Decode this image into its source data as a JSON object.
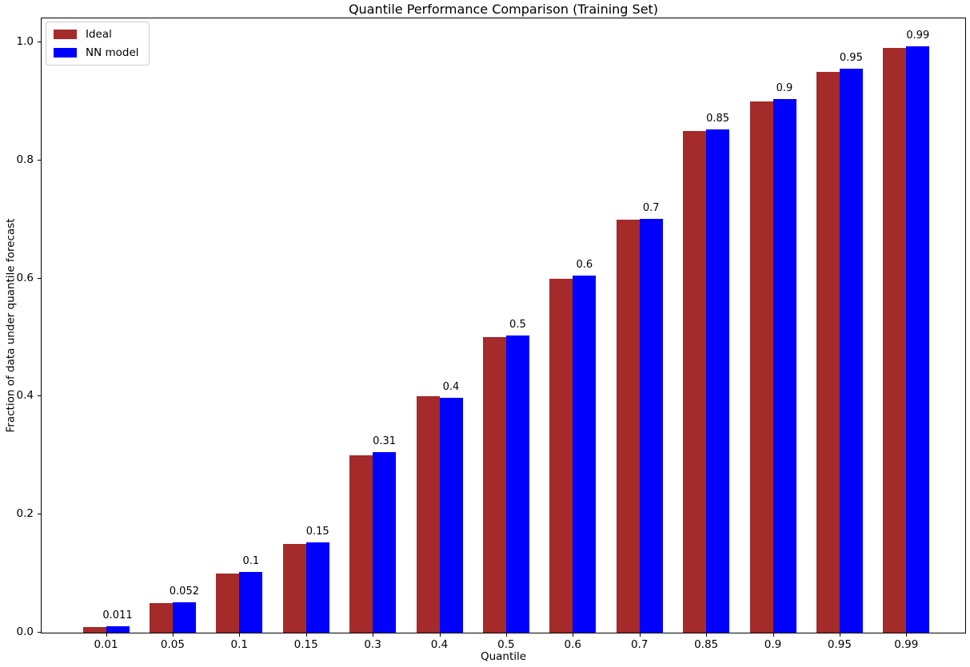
{
  "chart_data": {
    "type": "bar",
    "title": "Quantile Performance Comparison (Training Set)",
    "xlabel": "Quantile",
    "ylabel": "Fraction of data under quantile forecast",
    "categories": [
      "0.01",
      "0.05",
      "0.1",
      "0.15",
      "0.3",
      "0.4",
      "0.5",
      "0.6",
      "0.7",
      "0.85",
      "0.9",
      "0.95",
      "0.99"
    ],
    "series": [
      {
        "name": "Ideal",
        "color": "#a52a2a",
        "values": [
          0.01,
          0.05,
          0.1,
          0.15,
          0.3,
          0.4,
          0.5,
          0.6,
          0.7,
          0.85,
          0.9,
          0.95,
          0.99
        ]
      },
      {
        "name": "NN model",
        "color": "#0000ff",
        "values": [
          0.011,
          0.052,
          0.103,
          0.153,
          0.306,
          0.398,
          0.504,
          0.605,
          0.701,
          0.853,
          0.904,
          0.955,
          0.993
        ]
      }
    ],
    "bar_value_labels": [
      "0.011",
      "0.052",
      "0.1",
      "0.15",
      "0.31",
      "0.4",
      "0.5",
      "0.6",
      "0.7",
      "0.85",
      "0.9",
      "0.95",
      "0.99"
    ],
    "y_ticks": [
      {
        "value": 0.0,
        "label": "0.0"
      },
      {
        "value": 0.2,
        "label": "0.2"
      },
      {
        "value": 0.4,
        "label": "0.4"
      },
      {
        "value": 0.6,
        "label": "0.6"
      },
      {
        "value": 0.8,
        "label": "0.8"
      },
      {
        "value": 1.0,
        "label": "1.0"
      }
    ],
    "ylim": [
      0,
      1.0405
    ],
    "grid": false,
    "legend_position": "upper left",
    "axis_color": "#000000",
    "text_color": "#000000",
    "background_color": "#ffffff"
  }
}
